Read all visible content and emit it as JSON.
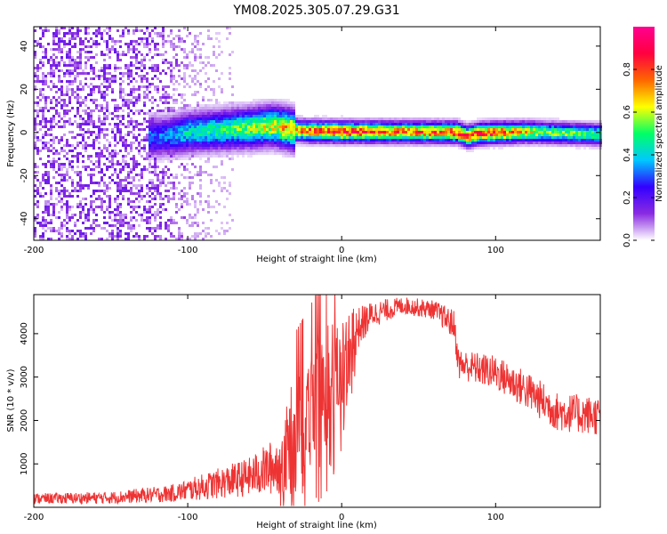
{
  "title": "YM08.2025.305.07.29.G31",
  "chart_data": [
    {
      "type": "heatmap",
      "name": "spectrogram",
      "xlabel": "Height of straight line (km)",
      "ylabel": "Frequency (Hz)",
      "xlim": [
        -200,
        168
      ],
      "ylim": [
        -50,
        49
      ],
      "xticks": [
        -200,
        -100,
        0,
        100
      ],
      "yticks": [
        -40,
        -20,
        0,
        20,
        40
      ],
      "colorbar": {
        "label": "Normalized spectral amplitude",
        "range": [
          0,
          1
        ],
        "ticks": [
          0.0,
          0.2,
          0.4,
          0.6,
          0.8
        ],
        "tick_labels": [
          "0.0",
          "0.2",
          "0.4",
          "0.6",
          "0.8"
        ],
        "colormap": [
          "#ffffff",
          "#8a2be2",
          "#3300ff",
          "#00c8ff",
          "#00ff66",
          "#ffff00",
          "#ff6600",
          "#ff0040",
          "#ff0090"
        ]
      },
      "line_center_hz": [
        {
          "x": -115,
          "f": -2
        },
        {
          "x": -100,
          "f": 0
        },
        {
          "x": -80,
          "f": 1
        },
        {
          "x": -60,
          "f": 2
        },
        {
          "x": -45,
          "f": 3
        },
        {
          "x": -30,
          "f": 1
        },
        {
          "x": -20,
          "f": 0.5
        },
        {
          "x": 0,
          "f": 0.3
        },
        {
          "x": 40,
          "f": 0.2
        },
        {
          "x": 75,
          "f": 0
        },
        {
          "x": 82,
          "f": -2
        },
        {
          "x": 90,
          "f": -0.5
        },
        {
          "x": 120,
          "f": 0.2
        },
        {
          "x": 168,
          "f": -1
        }
      ],
      "peak_amplitude": [
        {
          "x": -115,
          "a": 0.35
        },
        {
          "x": -100,
          "a": 0.45
        },
        {
          "x": -70,
          "a": 0.55
        },
        {
          "x": -40,
          "a": 0.7
        },
        {
          "x": -20,
          "a": 0.85
        },
        {
          "x": 0,
          "a": 0.9
        },
        {
          "x": 40,
          "a": 0.8
        },
        {
          "x": 80,
          "a": 0.85
        },
        {
          "x": 100,
          "a": 0.9
        },
        {
          "x": 130,
          "a": 0.6
        },
        {
          "x": 168,
          "a": 0.55
        }
      ],
      "noise_floor_region": [
        -200,
        -110
      ]
    },
    {
      "type": "line",
      "name": "snr",
      "xlabel": "Height of straight line (km)",
      "ylabel": "SNR (10 * v/v)",
      "xlim": [
        -200,
        168
      ],
      "ylim": [
        0,
        4900
      ],
      "xticks": [
        -200,
        -100,
        0,
        100
      ],
      "yticks": [
        1000,
        2000,
        3000,
        4000
      ],
      "color": "#ee3333",
      "series": [
        {
          "name": "SNR",
          "envelope": [
            {
              "x": -200,
              "mean": 200,
              "spread": 120
            },
            {
              "x": -150,
              "mean": 220,
              "spread": 140
            },
            {
              "x": -110,
              "mean": 320,
              "spread": 200
            },
            {
              "x": -80,
              "mean": 550,
              "spread": 350
            },
            {
              "x": -60,
              "mean": 700,
              "spread": 450
            },
            {
              "x": -40,
              "mean": 1000,
              "spread": 700
            },
            {
              "x": -30,
              "mean": 1800,
              "spread": 1400
            },
            {
              "x": -15,
              "mean": 2600,
              "spread": 1500
            },
            {
              "x": 0,
              "mean": 3300,
              "spread": 1200
            },
            {
              "x": 10,
              "mean": 4100,
              "spread": 500
            },
            {
              "x": 20,
              "mean": 4450,
              "spread": 300
            },
            {
              "x": 40,
              "mean": 4650,
              "spread": 200
            },
            {
              "x": 60,
              "mean": 4550,
              "spread": 220
            },
            {
              "x": 73,
              "mean": 4200,
              "spread": 350
            },
            {
              "x": 76,
              "mean": 3300,
              "spread": 350
            },
            {
              "x": 100,
              "mean": 3100,
              "spread": 400
            },
            {
              "x": 120,
              "mean": 2700,
              "spread": 450
            },
            {
              "x": 140,
              "mean": 2200,
              "spread": 450
            },
            {
              "x": 168,
              "mean": 2100,
              "spread": 450
            }
          ]
        }
      ]
    }
  ]
}
